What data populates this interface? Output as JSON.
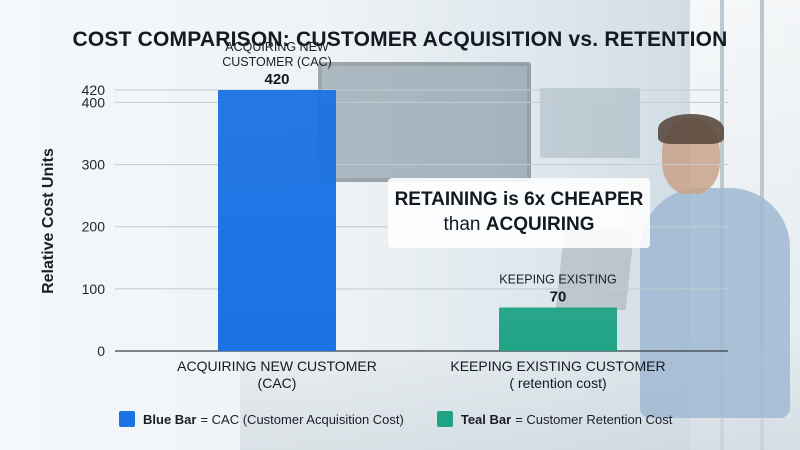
{
  "title": "COST COMPARISON: CUSTOMER ACQUISITION vs. RETENTION",
  "callout": {
    "line1_strong": "RETAINING",
    "line1_rest": " is 6x CHEAPER",
    "line2_plain": "than ",
    "line2_strong": "ACQUIRING"
  },
  "legend": [
    {
      "key": "Blue Bar",
      "text": "= CAC (Customer Acquisition Cost)",
      "color": "#1a72e3"
    },
    {
      "key": "Teal Bar",
      "text": "= Customer Retention Cost",
      "color": "#1fa386"
    }
  ],
  "chart_data": {
    "type": "bar",
    "title": "COST COMPARISON: CUSTOMER ACQUISITION vs. RETENTION",
    "ylabel": "Relative Cost Units",
    "xlabel": "",
    "ylim": [
      0,
      420
    ],
    "yticks": [
      0,
      100,
      200,
      300,
      400,
      420
    ],
    "grid": true,
    "categories": [
      [
        "ACQUIRING NEW CUSTOMER",
        "(CAC)"
      ],
      [
        "KEEPING EXISTING CUSTOMER",
        "( retention cost)"
      ]
    ],
    "values": [
      420,
      70
    ],
    "bar_captions": [
      [
        "ACQUIRING NEW",
        "CUSTOMER (CAC)"
      ],
      [
        "KEEPING EXISTING"
      ]
    ],
    "value_labels": [
      "420",
      "70"
    ],
    "colors": [
      "#1a72e3",
      "#1fa386"
    ]
  }
}
